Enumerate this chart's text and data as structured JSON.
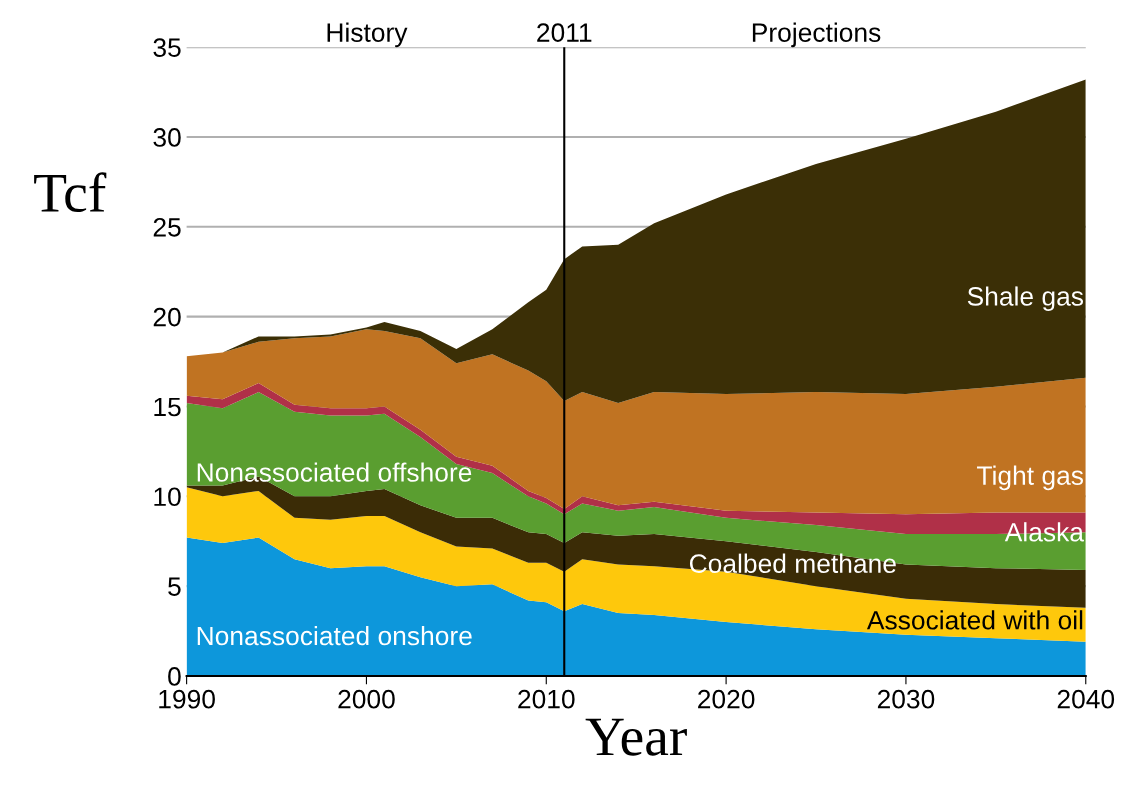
{
  "chart_data": {
    "type": "area",
    "stacked": true,
    "xlabel": "Year",
    "ylabel": "Tcf",
    "x": [
      1990,
      1992,
      1994,
      1996,
      1998,
      2000,
      2001,
      2003,
      2005,
      2007,
      2009,
      2010,
      2011,
      2012,
      2014,
      2016,
      2020,
      2025,
      2030,
      2035,
      2040
    ],
    "series": [
      {
        "name": "Nonassociated onshore",
        "color": "#0d97db",
        "values": [
          7.7,
          7.4,
          7.7,
          6.5,
          6.0,
          6.1,
          6.1,
          5.5,
          5.0,
          5.1,
          4.2,
          4.1,
          3.6,
          4.0,
          3.5,
          3.4,
          3.0,
          2.6,
          2.3,
          2.1,
          1.9
        ]
      },
      {
        "name": "Associated with oil",
        "color": "#fec80c",
        "values": [
          2.8,
          2.6,
          2.6,
          2.3,
          2.7,
          2.8,
          2.8,
          2.5,
          2.2,
          2.0,
          2.1,
          2.2,
          2.2,
          2.5,
          2.7,
          2.7,
          2.8,
          2.4,
          2.0,
          1.9,
          1.9
        ]
      },
      {
        "name": "Coalbed methane",
        "color": "#3b2c06",
        "values": [
          0.1,
          0.6,
          0.8,
          1.2,
          1.3,
          1.4,
          1.5,
          1.5,
          1.6,
          1.7,
          1.7,
          1.6,
          1.6,
          1.5,
          1.6,
          1.8,
          1.7,
          1.9,
          1.9,
          2.0,
          2.1
        ]
      },
      {
        "name": "Nonassociated offshore",
        "color": "#5a9e30",
        "values": [
          4.6,
          4.3,
          4.7,
          4.7,
          4.5,
          4.2,
          4.2,
          3.8,
          3.0,
          2.5,
          2.0,
          1.7,
          1.6,
          1.6,
          1.4,
          1.5,
          1.3,
          1.5,
          1.7,
          1.9,
          2.1
        ]
      },
      {
        "name": "Alaska",
        "color": "#b03048",
        "values": [
          0.4,
          0.5,
          0.5,
          0.4,
          0.4,
          0.4,
          0.4,
          0.4,
          0.4,
          0.4,
          0.3,
          0.3,
          0.3,
          0.4,
          0.3,
          0.3,
          0.4,
          0.7,
          1.1,
          1.2,
          1.1
        ]
      },
      {
        "name": "Tight gas",
        "color": "#c07322",
        "values": [
          2.2,
          2.6,
          2.3,
          3.7,
          4.0,
          4.4,
          4.2,
          5.1,
          5.2,
          6.2,
          6.7,
          6.5,
          6.0,
          5.8,
          5.7,
          6.1,
          6.5,
          6.7,
          6.7,
          7.0,
          7.5
        ]
      },
      {
        "name": "Shale gas",
        "color": "#3b2f06",
        "values": [
          0,
          0,
          0.3,
          0.1,
          0.1,
          0.1,
          0.5,
          0.4,
          0.8,
          1.4,
          3.8,
          5.1,
          7.9,
          8.1,
          8.8,
          9.4,
          11.1,
          12.7,
          14.2,
          15.3,
          16.6
        ]
      }
    ],
    "xlim": [
      1990,
      2040
    ],
    "xticks": [
      1990,
      2000,
      2010,
      2020,
      2030,
      2040
    ],
    "ylim": [
      0,
      35
    ],
    "yticks": [
      0,
      5,
      10,
      15,
      20,
      25,
      30,
      35
    ],
    "grid": "y",
    "legend": false,
    "ref_lines": [
      {
        "axis": "x",
        "value": 2011,
        "label": "2011",
        "color": "#000000"
      }
    ],
    "annotations": [
      "History",
      "Projections"
    ]
  }
}
